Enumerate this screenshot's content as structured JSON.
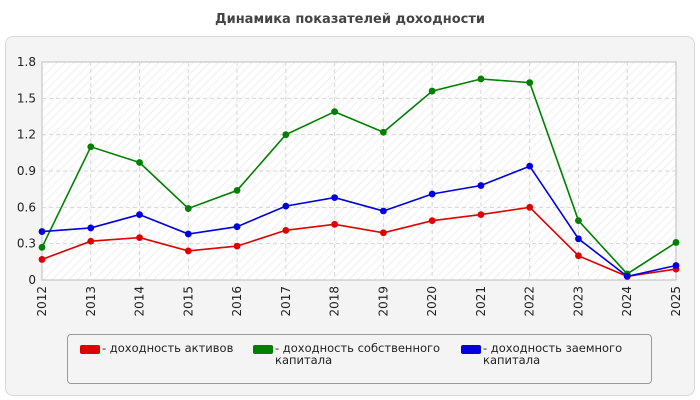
{
  "chart_data": {
    "type": "line",
    "title": "Динамика показателей доходности",
    "xlabel": "",
    "ylabel": "",
    "x": [
      "2012",
      "2013",
      "2014",
      "2015",
      "2016",
      "2017",
      "2018",
      "2019",
      "2020",
      "2021",
      "2022",
      "2023",
      "2024",
      "2025"
    ],
    "ylim": [
      0,
      1.8
    ],
    "yticks": [
      "0",
      "0.3",
      "0.6",
      "0.9",
      "1.2",
      "1.5",
      "1.8"
    ],
    "grid": true,
    "legend_position": "bottom",
    "series": [
      {
        "name": "- доходность активов",
        "color": "#e00000",
        "values": [
          0.17,
          0.32,
          0.35,
          0.24,
          0.28,
          0.41,
          0.46,
          0.39,
          0.49,
          0.54,
          0.6,
          0.2,
          0.03,
          0.09
        ]
      },
      {
        "name": "- доходность собственного\nкапитала",
        "color": "#008000",
        "values": [
          0.27,
          1.1,
          0.97,
          0.59,
          0.74,
          1.2,
          1.39,
          1.22,
          1.56,
          1.66,
          1.63,
          0.49,
          0.05,
          0.31
        ]
      },
      {
        "name": "- доходность заемного\nкапитала",
        "color": "#0000e0",
        "values": [
          0.4,
          0.43,
          0.54,
          0.38,
          0.44,
          0.61,
          0.68,
          0.57,
          0.71,
          0.78,
          0.94,
          0.34,
          0.03,
          0.12
        ]
      }
    ]
  }
}
